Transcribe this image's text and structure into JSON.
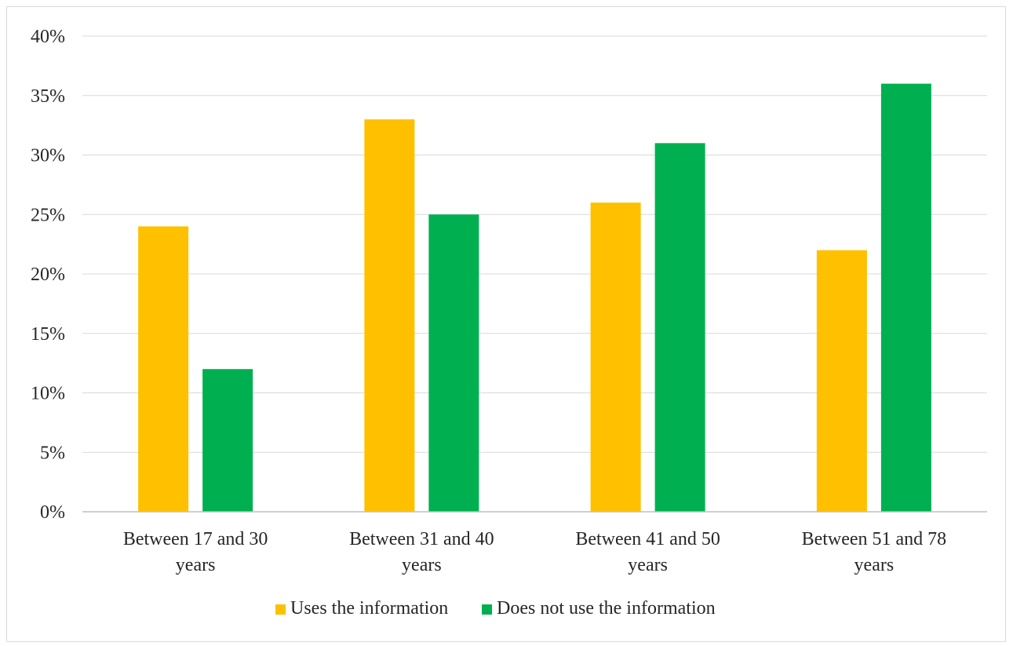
{
  "chart_data": {
    "type": "bar",
    "categories": [
      [
        "Between 17 and 30",
        "years"
      ],
      [
        "Between 31 and 40",
        "years"
      ],
      [
        "Between 41 and 50",
        "years"
      ],
      [
        "Between 51 and 78",
        "years"
      ]
    ],
    "series": [
      {
        "name": "Uses the information",
        "color": "#FFC000",
        "values": [
          24,
          33,
          26,
          22
        ]
      },
      {
        "name": "Does not use the information",
        "color": "#00B050",
        "values": [
          12,
          25,
          31,
          36
        ]
      }
    ],
    "y_ticks": [
      "0%",
      "5%",
      "10%",
      "15%",
      "20%",
      "25%",
      "30%",
      "35%",
      "40%"
    ],
    "ylim": [
      0,
      40
    ],
    "y_unit": "%",
    "grid": true,
    "legend_position": "bottom",
    "title": "",
    "xlabel": "",
    "ylabel": ""
  }
}
